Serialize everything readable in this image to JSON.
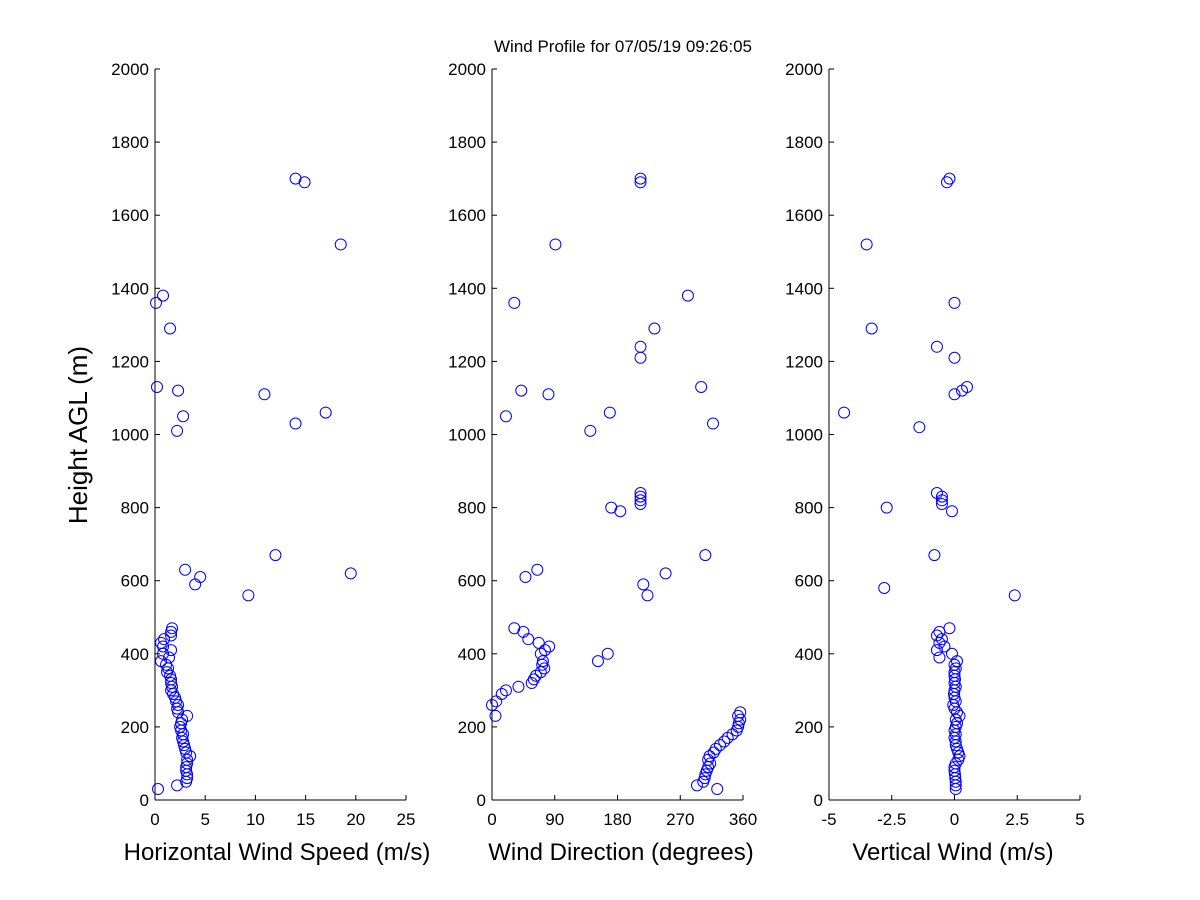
{
  "chart_data": {
    "title": "Wind Profile for  07/05/19 09:26:05",
    "ylabel": "Height AGL (m)",
    "colors": {
      "marker": "#0000ff",
      "axis": "#000000",
      "background": "#ffffff"
    },
    "panels": [
      {
        "type": "scatter",
        "xlabel": "Horizontal Wind Speed (m/s)",
        "xlim": [
          0,
          25
        ],
        "ylim": [
          0,
          2000
        ],
        "xticks": [
          0,
          5,
          10,
          15,
          20,
          25
        ],
        "xtick_labels": [
          "0",
          "5",
          "10",
          "15",
          "20",
          "25"
        ],
        "yticks": [
          0,
          200,
          400,
          600,
          800,
          1000,
          1200,
          1400,
          1600,
          1800,
          2000
        ],
        "points": [
          [
            0.3,
            30
          ],
          [
            2.2,
            40
          ],
          [
            3.1,
            50
          ],
          [
            3.2,
            60
          ],
          [
            3.2,
            70
          ],
          [
            3.1,
            80
          ],
          [
            3.1,
            90
          ],
          [
            3.2,
            100
          ],
          [
            3.2,
            110
          ],
          [
            3.5,
            120
          ],
          [
            3.1,
            130
          ],
          [
            3.0,
            140
          ],
          [
            2.9,
            150
          ],
          [
            2.8,
            160
          ],
          [
            2.7,
            170
          ],
          [
            2.8,
            180
          ],
          [
            2.6,
            190
          ],
          [
            2.5,
            200
          ],
          [
            2.6,
            210
          ],
          [
            2.7,
            220
          ],
          [
            3.2,
            230
          ],
          [
            2.3,
            240
          ],
          [
            2.2,
            250
          ],
          [
            2.3,
            260
          ],
          [
            2.1,
            270
          ],
          [
            2.0,
            280
          ],
          [
            1.8,
            290
          ],
          [
            1.6,
            300
          ],
          [
            1.7,
            310
          ],
          [
            1.6,
            320
          ],
          [
            1.6,
            330
          ],
          [
            1.5,
            340
          ],
          [
            1.2,
            350
          ],
          [
            1.3,
            360
          ],
          [
            1.1,
            370
          ],
          [
            0.6,
            380
          ],
          [
            1.4,
            390
          ],
          [
            0.8,
            400
          ],
          [
            1.6,
            410
          ],
          [
            0.8,
            420
          ],
          [
            0.6,
            430
          ],
          [
            0.9,
            440
          ],
          [
            1.6,
            450
          ],
          [
            1.6,
            460
          ],
          [
            1.7,
            470
          ],
          [
            9.3,
            560
          ],
          [
            19.5,
            620
          ],
          [
            4.0,
            590
          ],
          [
            4.5,
            610
          ],
          [
            3.0,
            630
          ],
          [
            12.0,
            670
          ],
          [
            2.2,
            1010
          ],
          [
            14.0,
            1030
          ],
          [
            2.8,
            1050
          ],
          [
            17.0,
            1060
          ],
          [
            10.9,
            1110
          ],
          [
            2.3,
            1120
          ],
          [
            0.2,
            1130
          ],
          [
            1.5,
            1290
          ],
          [
            0.1,
            1360
          ],
          [
            0.8,
            1380
          ],
          [
            18.5,
            1520
          ],
          [
            14.9,
            1690
          ],
          [
            14.0,
            1700
          ]
        ]
      },
      {
        "type": "scatter",
        "xlabel": "Wind Direction (degrees)",
        "xlim": [
          0,
          360
        ],
        "ylim": [
          0,
          2000
        ],
        "xticks": [
          0,
          90,
          180,
          270,
          360
        ],
        "xtick_labels": [
          "0",
          "90",
          "180",
          "270",
          "360"
        ],
        "yticks": [
          0,
          200,
          400,
          600,
          800,
          1000,
          1200,
          1400,
          1600,
          1800,
          2000
        ],
        "points": [
          [
            323,
            30
          ],
          [
            294,
            40
          ],
          [
            303,
            50
          ],
          [
            305,
            60
          ],
          [
            306,
            70
          ],
          [
            308,
            80
          ],
          [
            310,
            90
          ],
          [
            313,
            100
          ],
          [
            310,
            110
          ],
          [
            312,
            120
          ],
          [
            318,
            130
          ],
          [
            321,
            140
          ],
          [
            327,
            150
          ],
          [
            333,
            160
          ],
          [
            338,
            170
          ],
          [
            345,
            180
          ],
          [
            351,
            190
          ],
          [
            353,
            200
          ],
          [
            354,
            210
          ],
          [
            356,
            220
          ],
          [
            353,
            230
          ],
          [
            356,
            240
          ],
          [
            0,
            260
          ],
          [
            6,
            270
          ],
          [
            5,
            230
          ],
          [
            14,
            290
          ],
          [
            20,
            300
          ],
          [
            38,
            310
          ],
          [
            57,
            320
          ],
          [
            60,
            330
          ],
          [
            63,
            340
          ],
          [
            70,
            350
          ],
          [
            75,
            360
          ],
          [
            72,
            370
          ],
          [
            73,
            380
          ],
          [
            152,
            380
          ],
          [
            70,
            400
          ],
          [
            166,
            400
          ],
          [
            76,
            410
          ],
          [
            82,
            420
          ],
          [
            67,
            430
          ],
          [
            52,
            440
          ],
          [
            45,
            460
          ],
          [
            32,
            470
          ],
          [
            223,
            560
          ],
          [
            217,
            590
          ],
          [
            48,
            610
          ],
          [
            249,
            620
          ],
          [
            65,
            630
          ],
          [
            306,
            670
          ],
          [
            171,
            800
          ],
          [
            184,
            790
          ],
          [
            213,
            810
          ],
          [
            213,
            820
          ],
          [
            213,
            830
          ],
          [
            213,
            840
          ],
          [
            141,
            1010
          ],
          [
            317,
            1030
          ],
          [
            20,
            1050
          ],
          [
            169,
            1060
          ],
          [
            81,
            1110
          ],
          [
            42,
            1120
          ],
          [
            300,
            1130
          ],
          [
            213,
            1210
          ],
          [
            213,
            1240
          ],
          [
            233,
            1290
          ],
          [
            32,
            1360
          ],
          [
            281,
            1380
          ],
          [
            91,
            1520
          ],
          [
            213,
            1690
          ],
          [
            213,
            1700
          ]
        ]
      },
      {
        "type": "scatter",
        "xlabel": "Vertical Wind (m/s)",
        "xlim": [
          -5,
          5
        ],
        "ylim": [
          0,
          2000
        ],
        "xticks": [
          -5,
          -2.5,
          0,
          2.5,
          5
        ],
        "xtick_labels": [
          "-5",
          "-2.5",
          "0",
          "2.5",
          "5"
        ],
        "yticks": [
          0,
          200,
          400,
          600,
          800,
          1000,
          1200,
          1400,
          1600,
          1800,
          2000
        ],
        "points": [
          [
            0.05,
            30
          ],
          [
            0.05,
            40
          ],
          [
            0.05,
            50
          ],
          [
            0.03,
            60
          ],
          [
            0.02,
            70
          ],
          [
            0.0,
            80
          ],
          [
            0.0,
            90
          ],
          [
            0.05,
            100
          ],
          [
            0.15,
            110
          ],
          [
            0.2,
            120
          ],
          [
            0.15,
            130
          ],
          [
            0.1,
            140
          ],
          [
            0.05,
            150
          ],
          [
            0.05,
            160
          ],
          [
            0.0,
            170
          ],
          [
            0.05,
            180
          ],
          [
            0.0,
            190
          ],
          [
            0.05,
            200
          ],
          [
            0.1,
            210
          ],
          [
            0.05,
            220
          ],
          [
            0.2,
            230
          ],
          [
            0.1,
            240
          ],
          [
            0.0,
            250
          ],
          [
            -0.05,
            260
          ],
          [
            0.05,
            270
          ],
          [
            0.0,
            280
          ],
          [
            -0.02,
            290
          ],
          [
            0.0,
            300
          ],
          [
            0.05,
            310
          ],
          [
            0.0,
            320
          ],
          [
            0.02,
            330
          ],
          [
            0.0,
            340
          ],
          [
            0.0,
            350
          ],
          [
            0.05,
            360
          ],
          [
            0.0,
            370
          ],
          [
            0.1,
            380
          ],
          [
            -0.6,
            390
          ],
          [
            -0.1,
            400
          ],
          [
            -0.7,
            410
          ],
          [
            -0.4,
            420
          ],
          [
            -0.6,
            430
          ],
          [
            -0.5,
            440
          ],
          [
            -0.7,
            450
          ],
          [
            -0.6,
            460
          ],
          [
            -0.2,
            470
          ],
          [
            2.4,
            560
          ],
          [
            -2.8,
            580
          ],
          [
            -0.8,
            670
          ],
          [
            -0.7,
            840
          ],
          [
            -0.5,
            830
          ],
          [
            -0.5,
            820
          ],
          [
            -0.5,
            810
          ],
          [
            -0.1,
            790
          ],
          [
            -2.7,
            800
          ],
          [
            -1.4,
            1020
          ],
          [
            -4.4,
            1060
          ],
          [
            0.0,
            1110
          ],
          [
            0.3,
            1120
          ],
          [
            0.5,
            1130
          ],
          [
            0.0,
            1210
          ],
          [
            -0.7,
            1240
          ],
          [
            -3.3,
            1290
          ],
          [
            0.0,
            1360
          ],
          [
            -3.5,
            1520
          ],
          [
            -0.3,
            1690
          ],
          [
            -0.2,
            1700
          ]
        ]
      }
    ]
  }
}
